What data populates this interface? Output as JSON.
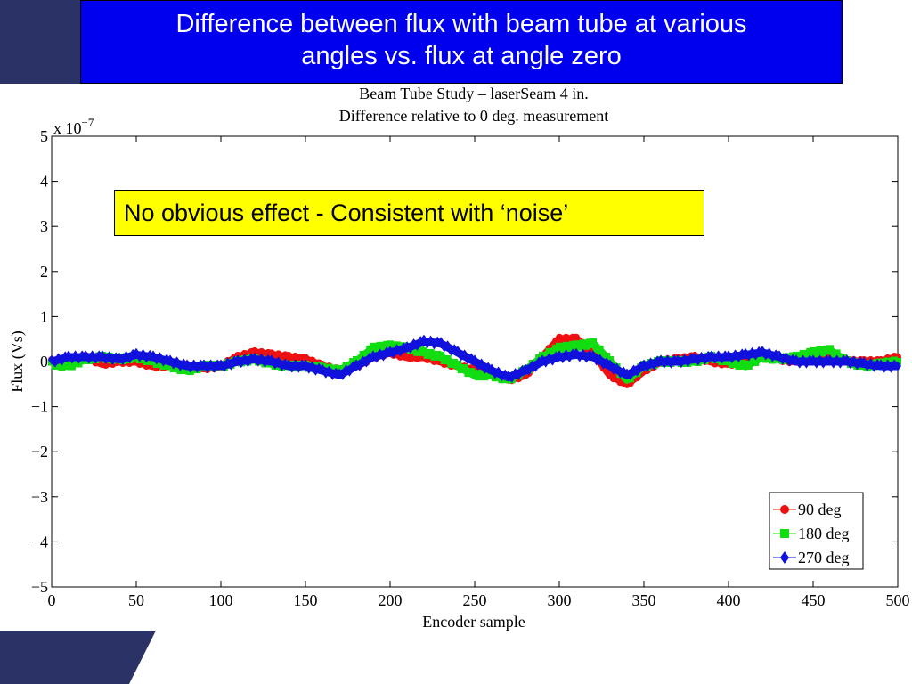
{
  "slide": {
    "title_line1": "Difference between flux with beam tube at various",
    "title_line2": "angles vs. flux at angle zero",
    "note": "No obvious effect - Consistent with ‘noise’",
    "colors": {
      "title_bg": "#0000ee",
      "title_text": "#ffffff",
      "corner": "#2a3266",
      "note_bg": "#ffff00"
    }
  },
  "chart_data": {
    "type": "line",
    "title": "Beam Tube Study – laserSeam 4 in.",
    "subtitle": "Difference relative to 0 deg. measurement",
    "xlabel": "Encoder sample",
    "ylabel": "Flux (Vs)",
    "y_exponent_label": "x 10",
    "y_exponent": "−7",
    "xlim": [
      0,
      500
    ],
    "ylim": [
      -5e-07,
      5e-07
    ],
    "x_ticks": [
      "0",
      "50",
      "100",
      "150",
      "200",
      "250",
      "300",
      "350",
      "400",
      "450",
      "500"
    ],
    "y_ticks": [
      "5",
      "4",
      "3",
      "2",
      "1",
      "0",
      "−1",
      "−2",
      "−3",
      "−4",
      "−5"
    ],
    "legend_position": "bottom-right",
    "grid": false,
    "x": [
      0,
      10,
      20,
      30,
      40,
      50,
      60,
      70,
      80,
      90,
      100,
      110,
      120,
      130,
      140,
      150,
      160,
      170,
      180,
      190,
      200,
      210,
      220,
      230,
      240,
      250,
      260,
      270,
      280,
      290,
      300,
      310,
      320,
      330,
      340,
      350,
      360,
      370,
      380,
      390,
      400,
      410,
      420,
      430,
      440,
      450,
      460,
      470,
      480,
      490,
      500
    ],
    "series": [
      {
        "name": "90 deg",
        "color": "#ee1111",
        "marker": "circle",
        "values": [
          0.0,
          -5e-09,
          1e-08,
          -5e-09,
          0.0,
          0.0,
          -1e-08,
          -1e-08,
          -1e-08,
          -1.5e-08,
          -1e-08,
          1e-08,
          2e-08,
          1.5e-08,
          1e-08,
          5e-09,
          -1e-08,
          -2e-08,
          -1e-08,
          1e-08,
          2e-08,
          1e-08,
          1e-08,
          0.0,
          -1e-08,
          -2e-08,
          -3e-08,
          -4e-08,
          -3e-08,
          1e-08,
          5e-08,
          5e-08,
          2e-08,
          -3e-08,
          -5e-08,
          -2e-08,
          0.0,
          5e-09,
          1e-08,
          0.0,
          -5e-09,
          0.0,
          1e-08,
          5e-09,
          0.0,
          5e-09,
          1e-08,
          0.0,
          0.0,
          0.0,
          1e-08
        ]
      },
      {
        "name": "180 deg",
        "color": "#11dd11",
        "marker": "square",
        "values": [
          -5e-09,
          -1e-08,
          5e-09,
          1e-08,
          5e-09,
          1e-08,
          0.0,
          -1e-08,
          -2e-08,
          -1e-08,
          -1e-08,
          0.0,
          5e-09,
          -5e-09,
          -1e-08,
          -1e-08,
          -1.5e-08,
          -2e-08,
          0.0,
          3e-08,
          3.5e-08,
          3e-08,
          2e-08,
          1e-08,
          -1e-08,
          -3e-08,
          -3e-08,
          -4e-08,
          -2e-08,
          1e-08,
          3e-08,
          3.5e-08,
          4e-08,
          0.0,
          -4e-08,
          -1e-08,
          0.0,
          0.0,
          0.0,
          1e-08,
          0.0,
          -1e-08,
          1e-08,
          5e-09,
          1e-08,
          2e-08,
          2.5e-08,
          0.0,
          -1e-08,
          -5e-09,
          0.0
        ]
      },
      {
        "name": "270 deg",
        "color": "#1111dd",
        "marker": "diamond",
        "values": [
          0.0,
          1e-08,
          1e-08,
          1e-08,
          5e-09,
          1.5e-08,
          1e-08,
          0.0,
          -1e-08,
          -1e-08,
          -1e-08,
          0.0,
          5e-09,
          0.0,
          -1e-08,
          -1e-08,
          -2e-08,
          -3e-08,
          -1e-08,
          1e-08,
          2e-08,
          3e-08,
          4.5e-08,
          4e-08,
          2e-08,
          0.0,
          -2e-08,
          -3.5e-08,
          -2e-08,
          0.0,
          1e-08,
          1.5e-08,
          1e-08,
          -1e-08,
          -3e-08,
          -1e-08,
          0.0,
          0.0,
          5e-09,
          1e-08,
          1e-08,
          1.5e-08,
          2e-08,
          1e-08,
          0.0,
          0.0,
          0.0,
          0.0,
          -5e-09,
          -1e-08,
          -1e-08
        ]
      }
    ]
  }
}
